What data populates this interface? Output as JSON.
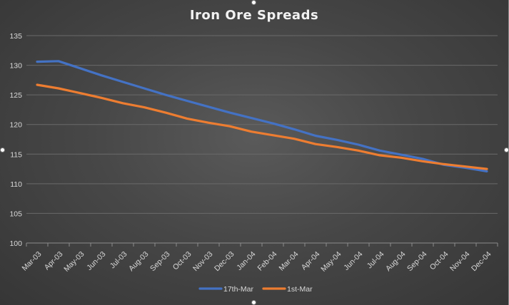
{
  "chart_data": {
    "type": "line",
    "title": "Iron Ore Spreads",
    "xlabel": "",
    "ylabel": "",
    "ylim": [
      100,
      135
    ],
    "yticks": [
      100,
      105,
      110,
      115,
      120,
      125,
      130,
      135
    ],
    "grid": true,
    "legend_position": "bottom",
    "categories": [
      "Mar-03",
      "Apr-03",
      "May-03",
      "Jun-03",
      "Jul-03",
      "Aug-03",
      "Sep-03",
      "Oct-03",
      "Nov-03",
      "Dec-03",
      "Jan-04",
      "Feb-04",
      "Mar-04",
      "Apr-04",
      "May-04",
      "Jun-04",
      "Jul-04",
      "Aug-04",
      "Sep-04",
      "Oct-04",
      "Nov-04",
      "Dec-04"
    ],
    "series": [
      {
        "name": "17th-Mar",
        "color": "#4472C4",
        "values": [
          130.6,
          130.7,
          129.5,
          128.3,
          127.2,
          126.1,
          125.0,
          124.0,
          123.0,
          122.0,
          121.1,
          120.2,
          119.2,
          118.1,
          117.4,
          116.6,
          115.6,
          114.9,
          114.2,
          113.2,
          112.7,
          112.1
        ]
      },
      {
        "name": "1st-Mar",
        "color": "#ED7D31",
        "values": [
          126.7,
          126.1,
          125.3,
          124.5,
          123.6,
          122.9,
          122.0,
          121.0,
          120.3,
          119.7,
          118.8,
          118.2,
          117.6,
          116.7,
          116.2,
          115.6,
          114.8,
          114.4,
          113.8,
          113.3,
          112.9,
          112.5
        ]
      }
    ]
  }
}
